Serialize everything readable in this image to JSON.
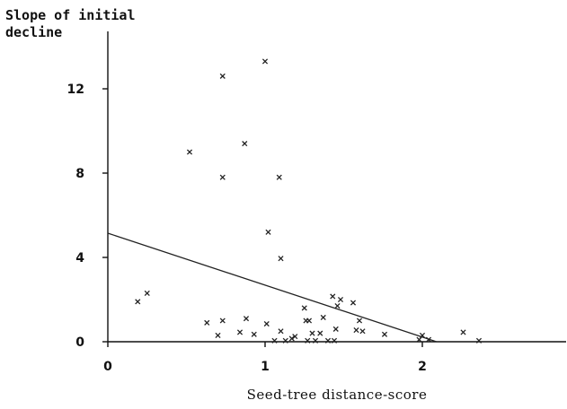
{
  "chart_data": {
    "type": "scatter",
    "ylabel_lines": [
      "Slope of initial",
      "decline"
    ],
    "xlabel": "Seed-tree distance-score",
    "xlim": [
      0,
      2.9
    ],
    "ylim": [
      0,
      14.5
    ],
    "x_ticks": [
      0,
      1,
      2
    ],
    "y_ticks": [
      0,
      4,
      8,
      12
    ],
    "x_tick_labels": [
      "0",
      "1",
      "2"
    ],
    "y_tick_labels": [
      "0",
      "4",
      "8",
      "12"
    ],
    "grid": false,
    "legend": "none",
    "marker": "x",
    "points": [
      {
        "x": 0.19,
        "y": 1.9
      },
      {
        "x": 0.25,
        "y": 2.3
      },
      {
        "x": 0.52,
        "y": 9.0
      },
      {
        "x": 0.63,
        "y": 0.9
      },
      {
        "x": 0.7,
        "y": 0.3
      },
      {
        "x": 0.73,
        "y": 12.6
      },
      {
        "x": 0.73,
        "y": 7.8
      },
      {
        "x": 0.73,
        "y": 1.0
      },
      {
        "x": 0.84,
        "y": 0.45
      },
      {
        "x": 0.87,
        "y": 9.4
      },
      {
        "x": 0.88,
        "y": 1.1
      },
      {
        "x": 0.93,
        "y": 0.35
      },
      {
        "x": 1.0,
        "y": 13.3
      },
      {
        "x": 1.01,
        "y": 0.85
      },
      {
        "x": 1.02,
        "y": 5.2
      },
      {
        "x": 1.06,
        "y": 0.05
      },
      {
        "x": 1.09,
        "y": 7.8
      },
      {
        "x": 1.1,
        "y": 0.5
      },
      {
        "x": 1.1,
        "y": 3.95
      },
      {
        "x": 1.13,
        "y": 0.05
      },
      {
        "x": 1.17,
        "y": 0.15
      },
      {
        "x": 1.19,
        "y": 0.25
      },
      {
        "x": 1.25,
        "y": 1.6
      },
      {
        "x": 1.26,
        "y": 1.0
      },
      {
        "x": 1.27,
        "y": 0.05
      },
      {
        "x": 1.28,
        "y": 1.0
      },
      {
        "x": 1.3,
        "y": 0.4
      },
      {
        "x": 1.32,
        "y": 0.05
      },
      {
        "x": 1.35,
        "y": 0.4
      },
      {
        "x": 1.37,
        "y": 1.15
      },
      {
        "x": 1.4,
        "y": 0.05
      },
      {
        "x": 1.43,
        "y": 2.15
      },
      {
        "x": 1.44,
        "y": 0.05
      },
      {
        "x": 1.45,
        "y": 0.6
      },
      {
        "x": 1.46,
        "y": 1.7
      },
      {
        "x": 1.48,
        "y": 2.0
      },
      {
        "x": 1.56,
        "y": 1.85
      },
      {
        "x": 1.58,
        "y": 0.55
      },
      {
        "x": 1.6,
        "y": 1.0
      },
      {
        "x": 1.62,
        "y": 0.5
      },
      {
        "x": 1.76,
        "y": 0.35
      },
      {
        "x": 1.98,
        "y": 0.1
      },
      {
        "x": 2.0,
        "y": 0.3
      },
      {
        "x": 2.04,
        "y": 0.1
      },
      {
        "x": 2.26,
        "y": 0.45
      },
      {
        "x": 2.36,
        "y": 0.05
      }
    ],
    "fit_line": {
      "x": [
        0,
        2.09
      ],
      "y": [
        5.15,
        0
      ]
    }
  }
}
